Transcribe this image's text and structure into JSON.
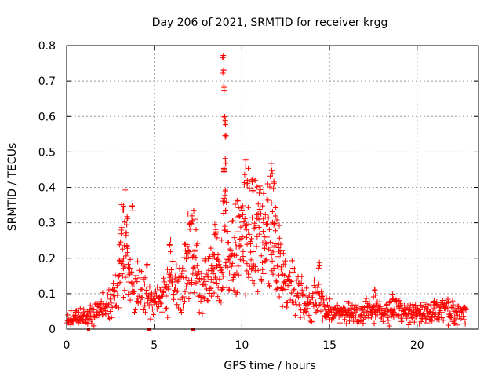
{
  "chart_data": {
    "type": "scatter",
    "title": "Day 206 of 2021, SRMTID for receiver krgg",
    "xlabel": "GPS time / hours",
    "ylabel": "SRMTID / TECUs",
    "xlim": [
      0,
      23.5
    ],
    "ylim": [
      0,
      0.8
    ],
    "xticks": [
      0,
      5,
      10,
      15,
      20
    ],
    "yticks": [
      0,
      0.1,
      0.2,
      0.3,
      0.4,
      0.5,
      0.6,
      0.7,
      0.8
    ],
    "grid": true,
    "marker": "+",
    "series": [
      {
        "name": "SRMTID",
        "color": "#ff0000",
        "profile": [
          {
            "x": 0.0,
            "y": 0.03
          },
          {
            "x": 1.0,
            "y": 0.035
          },
          {
            "x": 1.5,
            "y": 0.04
          },
          {
            "x": 2.0,
            "y": 0.06
          },
          {
            "x": 2.5,
            "y": 0.075
          },
          {
            "x": 2.9,
            "y": 0.1
          },
          {
            "x": 3.1,
            "y": 0.2
          },
          {
            "x": 3.3,
            "y": 0.28
          },
          {
            "x": 3.5,
            "y": 0.18
          },
          {
            "x": 3.8,
            "y": 0.1
          },
          {
            "x": 4.2,
            "y": 0.12
          },
          {
            "x": 4.5,
            "y": 0.09
          },
          {
            "x": 5.0,
            "y": 0.07
          },
          {
            "x": 5.5,
            "y": 0.09
          },
          {
            "x": 6.0,
            "y": 0.14
          },
          {
            "x": 6.5,
            "y": 0.12
          },
          {
            "x": 7.0,
            "y": 0.2
          },
          {
            "x": 7.3,
            "y": 0.22
          },
          {
            "x": 7.6,
            "y": 0.1
          },
          {
            "x": 8.0,
            "y": 0.13
          },
          {
            "x": 8.5,
            "y": 0.18
          },
          {
            "x": 8.8,
            "y": 0.14
          },
          {
            "x": 9.0,
            "y": 0.3
          },
          {
            "x": 9.3,
            "y": 0.18
          },
          {
            "x": 9.8,
            "y": 0.24
          },
          {
            "x": 10.3,
            "y": 0.3
          },
          {
            "x": 10.8,
            "y": 0.27
          },
          {
            "x": 11.3,
            "y": 0.25
          },
          {
            "x": 11.8,
            "y": 0.3
          },
          {
            "x": 12.3,
            "y": 0.16
          },
          {
            "x": 12.8,
            "y": 0.13
          },
          {
            "x": 13.3,
            "y": 0.09
          },
          {
            "x": 13.8,
            "y": 0.07
          },
          {
            "x": 14.3,
            "y": 0.09
          },
          {
            "x": 14.8,
            "y": 0.06
          },
          {
            "x": 15.5,
            "y": 0.045
          },
          {
            "x": 16.5,
            "y": 0.045
          },
          {
            "x": 17.5,
            "y": 0.05
          },
          {
            "x": 18.5,
            "y": 0.055
          },
          {
            "x": 19.5,
            "y": 0.045
          },
          {
            "x": 20.5,
            "y": 0.04
          },
          {
            "x": 21.5,
            "y": 0.05
          },
          {
            "x": 22.8,
            "y": 0.045
          }
        ],
        "peaks": [
          {
            "x": 3.25,
            "y": 0.36
          },
          {
            "x": 3.45,
            "y": 0.32
          },
          {
            "x": 3.75,
            "y": 0.35
          },
          {
            "x": 4.6,
            "y": 0.19
          },
          {
            "x": 5.9,
            "y": 0.26
          },
          {
            "x": 7.2,
            "y": 0.32
          },
          {
            "x": 8.5,
            "y": 0.29
          },
          {
            "x": 8.93,
            "y": 0.775
          },
          {
            "x": 8.95,
            "y": 0.74
          },
          {
            "x": 8.97,
            "y": 0.69
          },
          {
            "x": 9.0,
            "y": 0.61
          },
          {
            "x": 9.05,
            "y": 0.59
          },
          {
            "x": 9.08,
            "y": 0.565
          },
          {
            "x": 9.05,
            "y": 0.49
          },
          {
            "x": 9.0,
            "y": 0.46
          },
          {
            "x": 9.05,
            "y": 0.395
          },
          {
            "x": 10.3,
            "y": 0.43
          },
          {
            "x": 10.6,
            "y": 0.44
          },
          {
            "x": 11.7,
            "y": 0.46
          },
          {
            "x": 11.85,
            "y": 0.43
          },
          {
            "x": 14.4,
            "y": 0.19
          },
          {
            "x": 17.6,
            "y": 0.12
          },
          {
            "x": 18.6,
            "y": 0.1
          },
          {
            "x": 21.0,
            "y": 0.09
          }
        ],
        "zero_points": [
          {
            "x": 1.25,
            "y": 0.0
          },
          {
            "x": 4.7,
            "y": 0.0
          },
          {
            "x": 7.2,
            "y": 0.0
          },
          {
            "x": 7.25,
            "y": 0.0
          }
        ]
      }
    ]
  }
}
